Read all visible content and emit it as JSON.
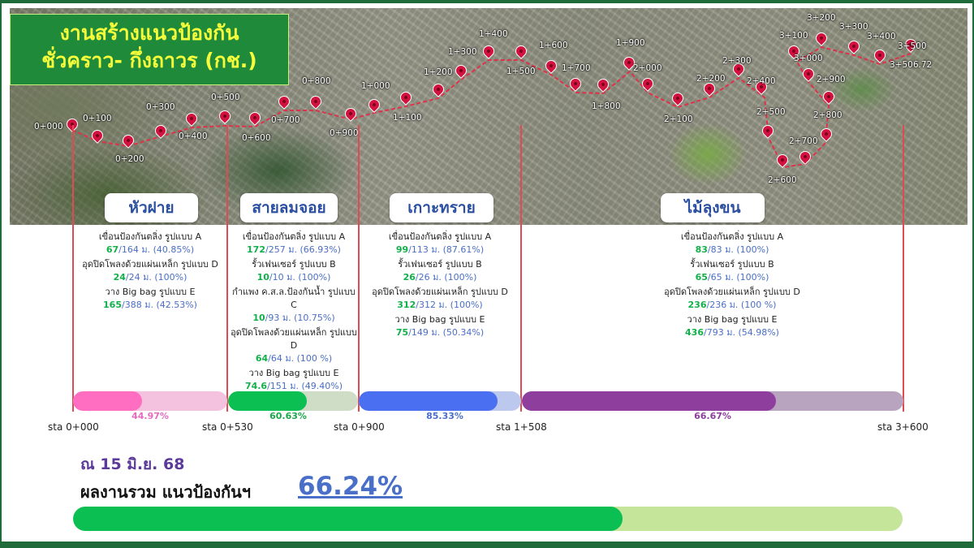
{
  "title": {
    "line1": "งานสร้างแนวป้องกัน",
    "line2": "ชั่วคราว- กึ่งถาวร (กช.)"
  },
  "stations": [
    "0+000",
    "0+100",
    "0+200",
    "0+300",
    "0+400",
    "0+500",
    "0+600",
    "0+700",
    "0+800",
    "0+900",
    "1+000",
    "1+100",
    "1+200",
    "1+300",
    "1+400",
    "1+500",
    "1+600",
    "1+700",
    "1+800",
    "1+900",
    "2+000",
    "2+100",
    "2+200",
    "2+300",
    "2+400",
    "2+500",
    "2+600",
    "2+700",
    "2+800",
    "2+900",
    "3+000",
    "3+100",
    "3+200",
    "3+300",
    "3+400",
    "3+500",
    "3+506.72"
  ],
  "zones": [
    {
      "name": "หัวฝาย",
      "items": [
        {
          "label": "เขื่อนป้องกันตลิ่ง รูปแบบ A",
          "done": "67",
          "rest": "/164 ม. (40.85%)"
        },
        {
          "label": "อุดปิดโพลงด้วยแผ่นเหล็ก รูปแบบ D",
          "done": "24",
          "rest": "/24 ม. (100%)"
        },
        {
          "label": "วาง Big bag รูปแบบ E",
          "done": "165",
          "rest": "/388 ม. (42.53%)"
        }
      ],
      "progress_label": "44.97%",
      "progress": 0.4497,
      "color_fill": "#ff6ec0",
      "color_track": "#f4c2de",
      "color_text": "#e66bbf"
    },
    {
      "name": "สายลมจอย",
      "items": [
        {
          "label": "เขื่อนป้องกันตลิ่ง รูปแบบ A",
          "done": "172",
          "rest": "/257 ม. (66.93%)"
        },
        {
          "label": "รั้วเฟนเซอร์ รูปแบบ B",
          "done": "10",
          "rest": "/10 ม. (100%)"
        },
        {
          "label": "กำแพง ค.ส.ล.ป้องกันน้ำ รูปแบบ C",
          "done": "10",
          "rest": "/93 ม. (10.75%)"
        },
        {
          "label": "อุดปิดโพลงด้วยแผ่นเหล็ก รูปแบบ D",
          "done": "64",
          "rest": "/64 ม. (100 %)"
        },
        {
          "label": "วาง Big bag รูปแบบ E",
          "done": "74.6",
          "rest": "/151 ม. (49.40%)"
        }
      ],
      "progress_label": "60.63%",
      "progress": 0.6063,
      "color_fill": "#0bbf52",
      "color_track": "#cfdcc6",
      "color_text": "#1aa84a"
    },
    {
      "name": "เกาะทราย",
      "items": [
        {
          "label": "เขื่อนป้องกันตลิ่ง รูปแบบ A",
          "done": "99",
          "rest": "/113 ม. (87.61%)"
        },
        {
          "label": "รั้วเฟนเซอร์ รูปแบบ B",
          "done": "26",
          "rest": "/26 ม. (100%)"
        },
        {
          "label": "อุดปิดโพลงด้วยแผ่นเหล็ก รูปแบบ D",
          "done": "312",
          "rest": "/312 ม. (100%)"
        },
        {
          "label": "วาง Big bag รูปแบบ E",
          "done": "75",
          "rest": "/149 ม. (50.34%)"
        }
      ],
      "progress_label": "85.33%",
      "progress": 0.8533,
      "color_fill": "#4a6ff0",
      "color_track": "#bcc8ee",
      "color_text": "#4a6fc8"
    },
    {
      "name": "ไม้ลุงขน",
      "items": [
        {
          "label": "เขื่อนป้องกันตลิ่ง รูปแบบ A",
          "done": "83",
          "rest": "/83 ม. (100%)"
        },
        {
          "label": "รั้วเฟนเซอร์ รูปแบบ B",
          "done": "65",
          "rest": "/65 ม. (100%)"
        },
        {
          "label": "อุดปิดโพลงด้วยแผ่นเหล็ก รูปแบบ D",
          "done": "236",
          "rest": "/236 ม. (100 %)"
        },
        {
          "label": "วาง Big bag รูปแบบ E",
          "done": "436",
          "rest": "/793 ม. (54.98%)"
        }
      ],
      "progress_label": "66.67%",
      "progress": 0.6667,
      "color_fill": "#8e3f9e",
      "color_track": "#b8a4bf",
      "color_text": "#8e3f9e"
    }
  ],
  "sta_labels": [
    "sta 0+000",
    "sta 0+530",
    "sta 0+900",
    "sta 1+508",
    "sta 3+600"
  ],
  "summary": {
    "date": "ณ 15 มิ.ย. 68",
    "label": "ผลงานรวม แนวป้องกันฯ",
    "percent_label": "66.24%",
    "percent": 0.6624
  }
}
